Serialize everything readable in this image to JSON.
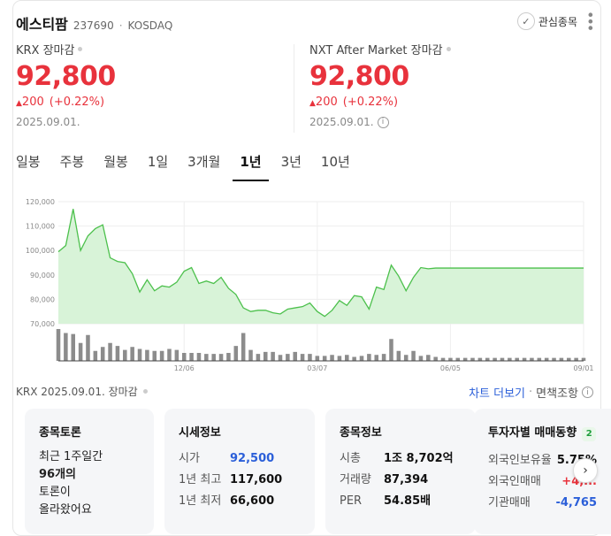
{
  "header": {
    "title": "에스티팜",
    "code": "237690",
    "separator": "·",
    "market": "KOSDAQ",
    "favorite_label": "관심종목"
  },
  "krx": {
    "label": "KRX 장마감",
    "price": "92,800",
    "change": "200",
    "change_pct": "(+0.22%)",
    "date": "2025.09.01."
  },
  "nxt": {
    "label": "NXT After Market 장마감",
    "price": "92,800",
    "change": "200",
    "change_pct": "(+0.22%)",
    "date": "2025.09.01."
  },
  "tabs": [
    {
      "label": "일봉"
    },
    {
      "label": "주봉"
    },
    {
      "label": "월봉"
    },
    {
      "label": "1일"
    },
    {
      "label": "3개월"
    },
    {
      "label": "1년",
      "active": true
    },
    {
      "label": "3년"
    },
    {
      "label": "10년"
    }
  ],
  "footer": {
    "left": "KRX  2025.09.01. 장마감",
    "chart_link": "차트 더보기",
    "sep": "·",
    "disclaimer": "면책조항"
  },
  "panels": {
    "discussion": {
      "title": "종목토론",
      "lines": [
        "최근 1주일간",
        "96개의",
        "토론이",
        "올라왔어요"
      ]
    },
    "quote": {
      "title": "시세정보",
      "rows": [
        {
          "k": "시가",
          "v": "92,500"
        },
        {
          "k": "1년 최고",
          "v": "117,600"
        },
        {
          "k": "1년 최저",
          "v": "66,600"
        }
      ]
    },
    "stock": {
      "title": "종목정보",
      "rows": [
        {
          "k": "시총",
          "v": "1조 8,702억"
        },
        {
          "k": "거래량",
          "v": "87,394"
        },
        {
          "k": "PER",
          "v": "54.85배"
        }
      ]
    },
    "investor": {
      "title": "투자자별 매매동향",
      "badge": "2",
      "rows": [
        {
          "k": "외국인보유율",
          "v": "5.75%"
        },
        {
          "k": "외국인매매",
          "v": "+4,..."
        },
        {
          "k": "기관매매",
          "v": "-4,765"
        }
      ]
    }
  },
  "colors": {
    "up": "#e8323c",
    "down": "#2b5fd9",
    "area_fill": "#d8f3d8",
    "area_line": "#4cc04c",
    "volume": "#8c8c8c"
  },
  "chart_data": {
    "type": "area",
    "yticks": [
      "120,000",
      "110,000",
      "100,000",
      "90,000",
      "80,000",
      "70,000"
    ],
    "ylim": [
      70000,
      120000
    ],
    "xticks": [
      {
        "label": "12/06",
        "index": 17
      },
      {
        "label": "03/07",
        "index": 35
      },
      {
        "label": "06/05",
        "index": 53
      },
      {
        "label": "09/01",
        "index": 71
      }
    ],
    "price": [
      99500,
      102000,
      117000,
      100000,
      106000,
      109000,
      110500,
      97000,
      95500,
      95000,
      90500,
      83000,
      88000,
      83500,
      85500,
      85000,
      87000,
      91500,
      93000,
      86500,
      87500,
      86500,
      89000,
      84500,
      82000,
      76500,
      75000,
      75500,
      75500,
      74500,
      74000,
      76000,
      76500,
      77000,
      78500,
      75000,
      73000,
      75500,
      79500,
      77500,
      81500,
      81000,
      76000,
      85000,
      84000,
      94000,
      89500,
      83500,
      89000,
      93000,
      92500,
      92800,
      92800,
      92800,
      92800,
      92800,
      92800,
      92800,
      92800,
      92800,
      92800,
      92800,
      92800,
      92800,
      92800,
      92800,
      92800,
      92800,
      92800,
      92800,
      92800,
      92800
    ],
    "volume": [
      32,
      28,
      27,
      18,
      26,
      10,
      14,
      18,
      15,
      11,
      14,
      12,
      11,
      10,
      10,
      12,
      11,
      8,
      8,
      8,
      7,
      7,
      7,
      8,
      15,
      28,
      11,
      7,
      9,
      9,
      6,
      7,
      9,
      7,
      7,
      5,
      5,
      6,
      5,
      6,
      4,
      5,
      7,
      6,
      7,
      22,
      10,
      6,
      10,
      5,
      6,
      4,
      3,
      3,
      3,
      3,
      3,
      3,
      3,
      3,
      3,
      3,
      3,
      3,
      3,
      3,
      3,
      3,
      3,
      3,
      3,
      3
    ]
  }
}
